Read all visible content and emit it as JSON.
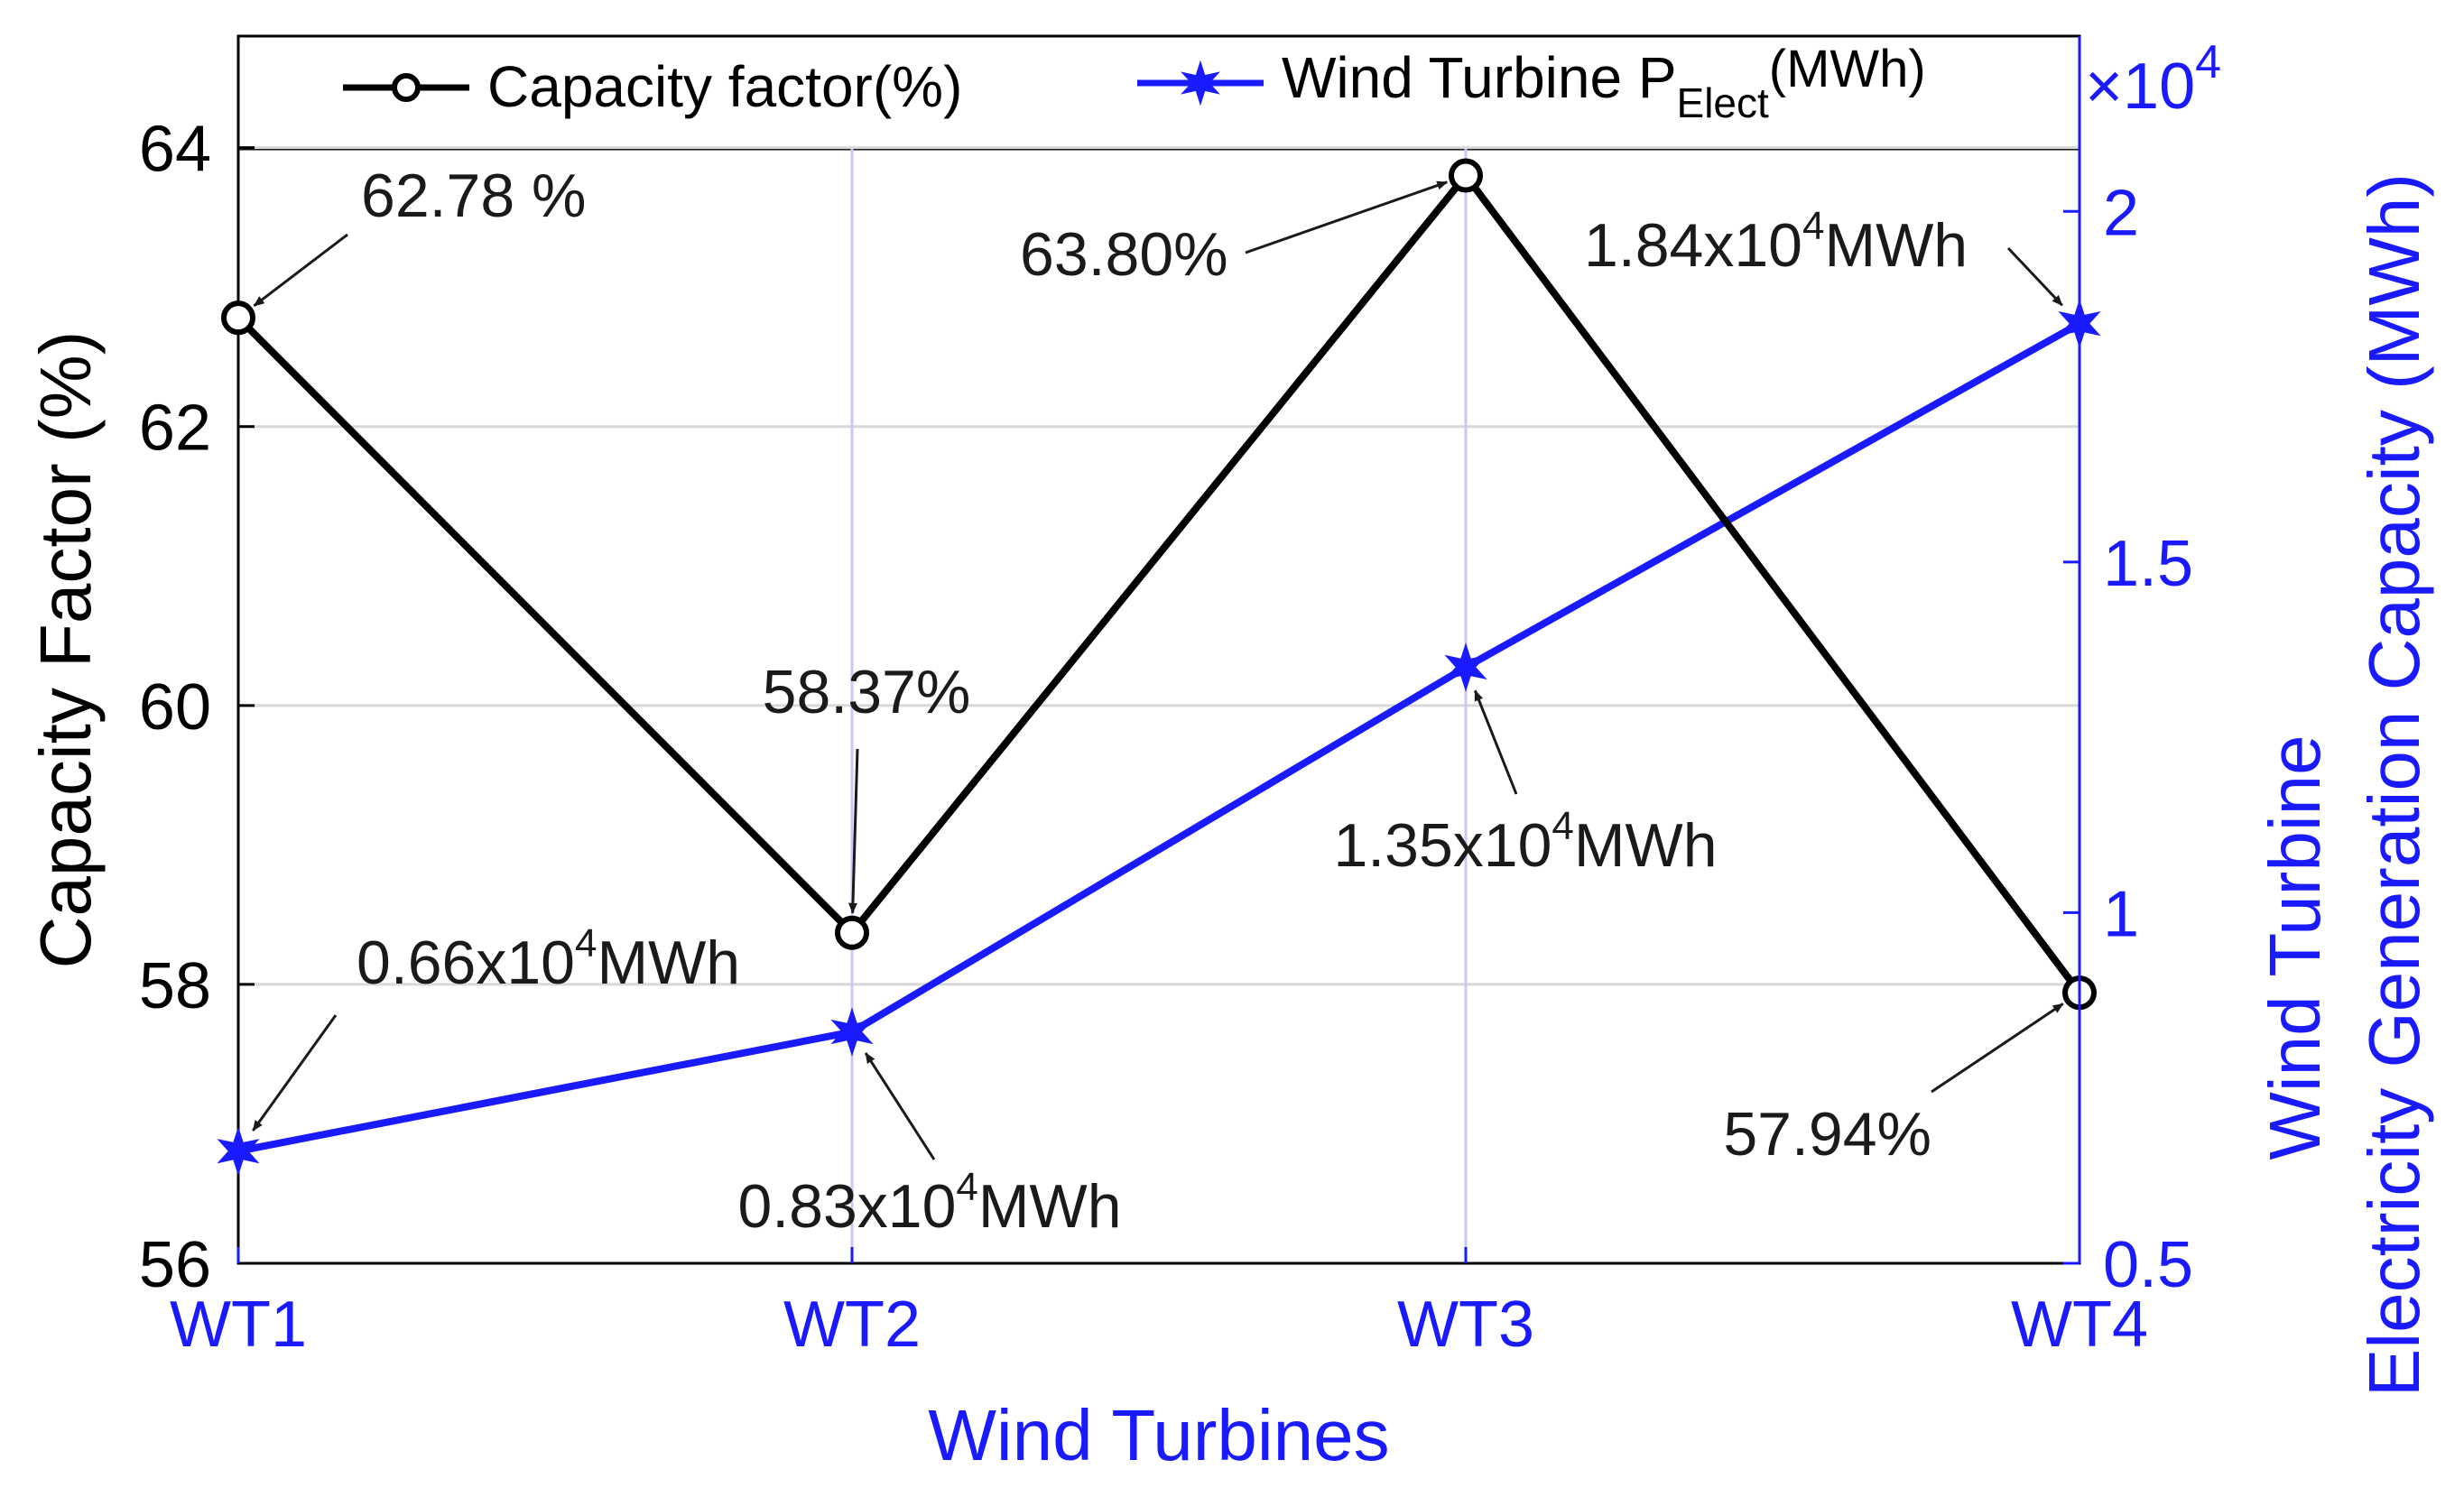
{
  "colors": {
    "series1": "#000000",
    "series2": "#1a1aff",
    "grid": "#d8d8d8",
    "xgrid": "#c8c8ff",
    "axis": "#000000"
  },
  "chart_data": {
    "type": "line",
    "categories": [
      "WT1",
      "WT2",
      "WT3",
      "WT4"
    ],
    "xlabel": "Wind Turbines",
    "ylabel_left": "Capacity Factor (%)",
    "ylabel_right_line1": "Wind Turbine",
    "ylabel_right_line2": "Electricity Generation Capacity (MWh)",
    "right_axis_multiplier": {
      "text": "×10",
      "exp": "4"
    },
    "ylim_left": [
      56,
      64.8
    ],
    "ylim_right": [
      0.5,
      2.25
    ],
    "yticks_left": [
      56,
      58,
      60,
      62,
      64
    ],
    "yticks_right": [
      0.5,
      1,
      1.5,
      2
    ],
    "grid": true,
    "legend_position": "top",
    "series": [
      {
        "name": "Capacity factor(%)",
        "axis": "left",
        "marker": "circle",
        "color": "#000000",
        "values": [
          62.78,
          58.37,
          63.8,
          57.94
        ]
      },
      {
        "name_main": "Wind Turbine P",
        "name_sub": "Elect",
        "name_tail": "(MWh)",
        "axis": "right",
        "marker": "star",
        "color": "#1a1aff",
        "values": [
          0.66,
          0.83,
          1.35,
          1.84
        ]
      }
    ],
    "annotations": {
      "cf": [
        "62.78 %",
        "58.37%",
        "63.80%",
        "57.94%"
      ],
      "pe": [
        {
          "pre": "0.66x10",
          "exp": "4",
          "post": "MWh"
        },
        {
          "pre": "0.83x10",
          "exp": "4",
          "post": "MWh"
        },
        {
          "pre": "1.35x10",
          "exp": "4",
          "post": "MWh"
        },
        {
          "pre": "1.84x10",
          "exp": "4",
          "post": "MWh"
        }
      ]
    }
  }
}
